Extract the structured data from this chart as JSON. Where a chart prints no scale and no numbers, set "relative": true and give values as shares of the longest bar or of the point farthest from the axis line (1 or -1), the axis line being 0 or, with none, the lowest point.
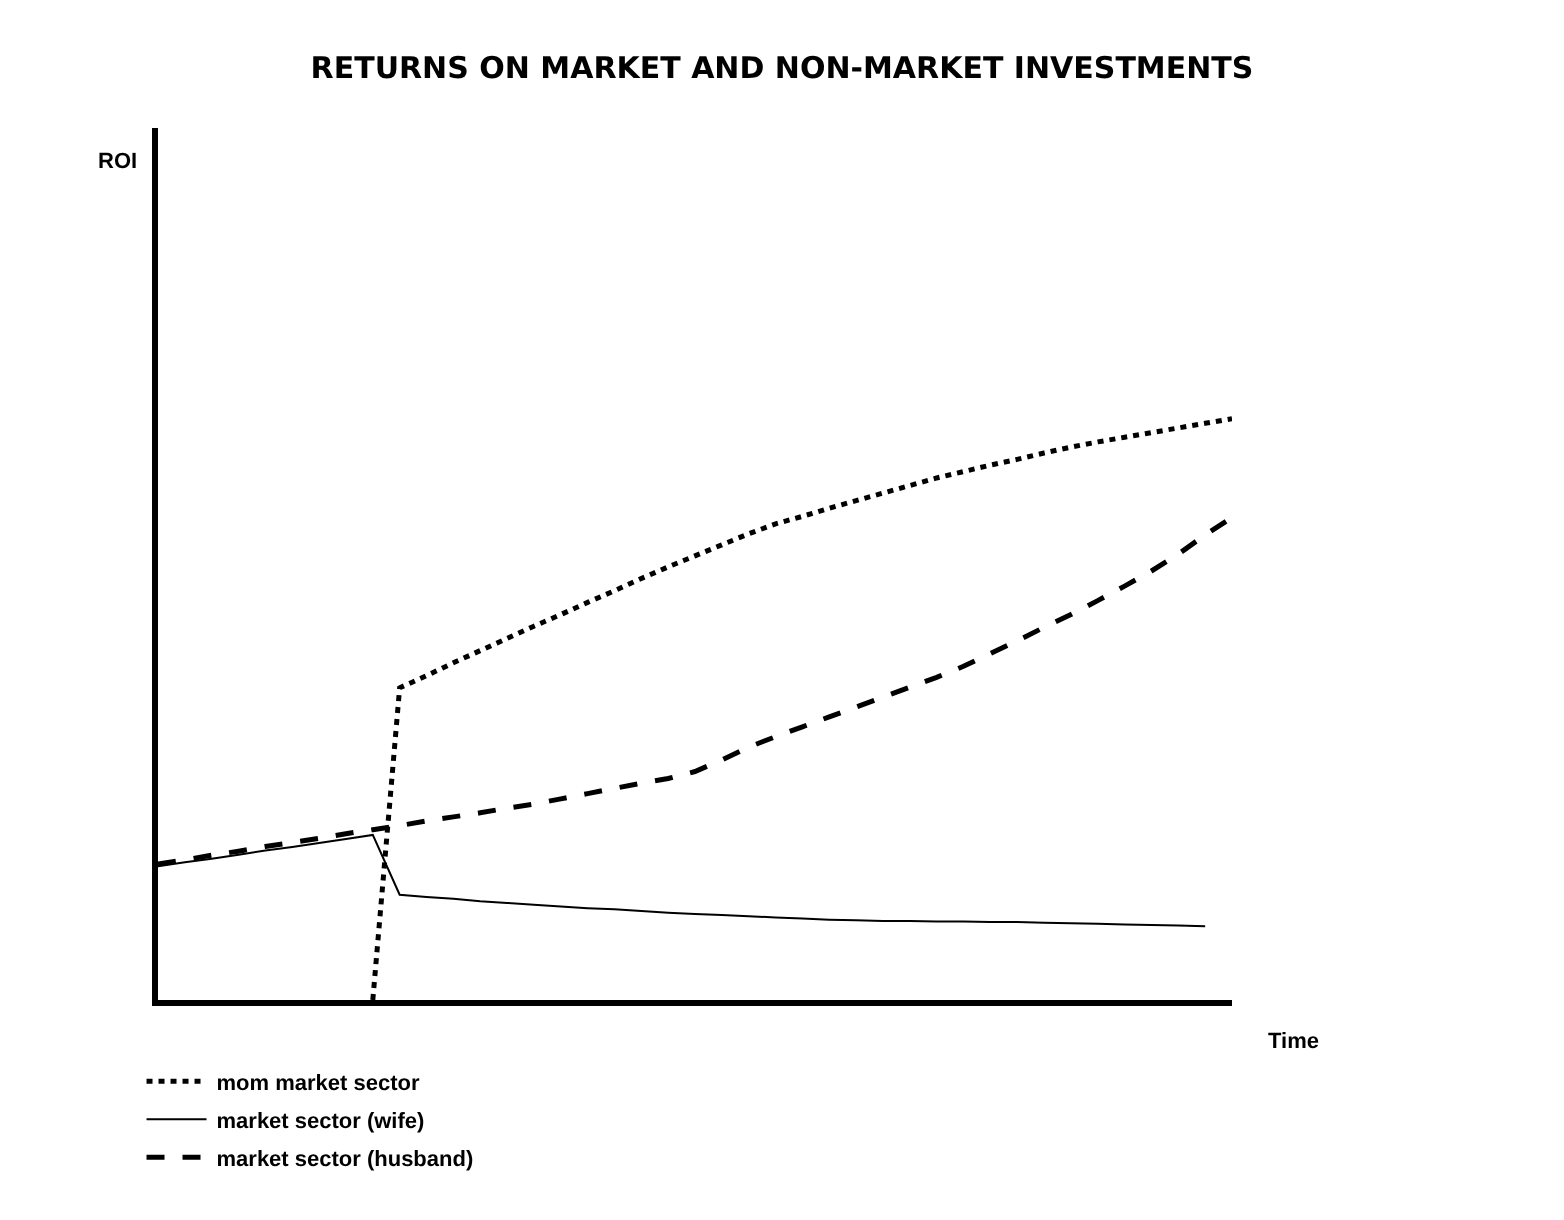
{
  "chart_data": {
    "type": "line",
    "title": "RETURNS ON MARKET AND NON-MARKET INVESTMENTS",
    "xlabel": "Time",
    "annotations": [
      "ROI"
    ],
    "relative": true,
    "legend": "bottom left",
    "marker": "none",
    "categories": [
      null,
      null,
      null,
      null,
      null,
      null,
      null,
      null,
      null,
      null,
      null,
      null,
      null,
      null,
      null,
      null,
      null,
      null,
      null,
      null,
      null,
      null,
      null,
      null,
      null,
      null,
      null,
      null,
      null,
      null,
      null,
      null,
      null,
      null,
      null,
      null,
      null,
      null,
      null,
      null,
      null
    ],
    "series": [
      {
        "name": "mom market sector",
        "color": "#000000",
        "line_style": "dotted",
        "values": [
          null,
          null,
          null,
          null,
          null,
          null,
          null,
          null,
          0,
          0.537,
          0.558,
          0.58,
          0.601,
          0.622,
          0.643,
          0.663,
          0.684,
          0.704,
          0.725,
          0.745,
          0.764,
          0.783,
          0.802,
          0.819,
          0.832,
          0.846,
          0.859,
          0.872,
          0.885,
          0.898,
          0.909,
          0.92,
          0.93,
          0.941,
          0.951,
          0.96,
          0.968,
          0.976,
          0.984,
          0.992,
          1.0
        ]
      },
      {
        "name": "market sector (wife)",
        "color": "#000000",
        "line_style": "solid",
        "values": [
          0.23,
          0.237,
          0.243,
          0.25,
          0.257,
          0.263,
          0.27,
          0.277,
          0.284,
          0.181,
          0.177,
          0.174,
          0.17,
          0.167,
          0.164,
          0.161,
          0.158,
          0.156,
          0.153,
          0.15,
          0.148,
          0.146,
          0.144,
          0.142,
          0.14,
          0.138,
          0.137,
          0.136,
          0.136,
          0.135,
          0.135,
          0.134,
          0.134,
          0.133,
          0.132,
          0.131,
          0.13,
          0.129,
          0.128,
          0.127,
          null
        ]
      },
      {
        "name": "market sector (husband)",
        "color": "#000000",
        "line_style": "dashed",
        "values": [
          0.234,
          0.241,
          0.249,
          0.256,
          0.264,
          0.271,
          0.278,
          0.286,
          0.293,
          0.3,
          0.308,
          0.315,
          0.322,
          0.33,
          0.337,
          0.346,
          0.355,
          0.364,
          0.373,
          0.381,
          0.393,
          0.413,
          0.435,
          0.453,
          0.47,
          0.487,
          0.504,
          0.521,
          0.538,
          0.555,
          0.574,
          0.596,
          0.618,
          0.641,
          0.663,
          0.687,
          0.712,
          0.738,
          0.767,
          0.8,
          0.83
        ]
      }
    ]
  }
}
